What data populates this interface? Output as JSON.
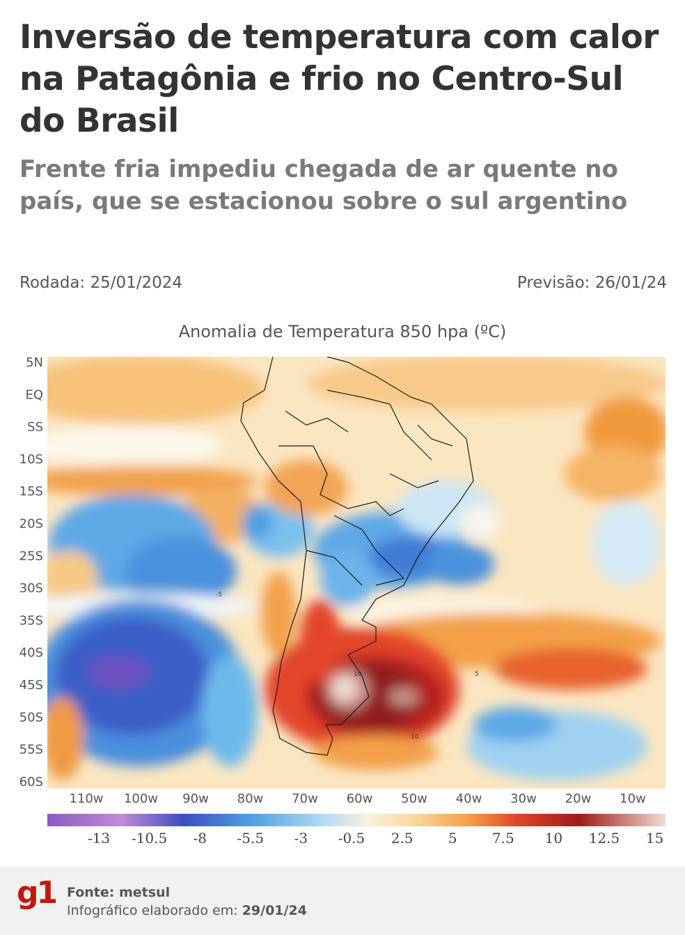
{
  "header": {
    "title": "Inversão de temperatura com calor na Patagônia e frio no Centro-Sul do Brasil",
    "subtitle": "Frente fria impediu chegada de ar quente no país, que se estacionou sobre o sul argentino"
  },
  "run": {
    "label": "Rodada: 25/01/2024"
  },
  "forecast": {
    "label": "Previsão: 26/01/24"
  },
  "map": {
    "title": "Anomalia de Temperatura 850 hpa (ºC)",
    "lat_labels": [
      "5N",
      "EQ",
      "SS",
      "10S",
      "15S",
      "20S",
      "25S",
      "30S",
      "35S",
      "40S",
      "45S",
      "50S",
      "55S",
      "60S"
    ],
    "lon_labels": [
      "110w",
      "100w",
      "90w",
      "80w",
      "70w",
      "60w",
      "50w",
      "40w",
      "30w",
      "20w",
      "10w"
    ],
    "contour_labels": [
      "5",
      "-5",
      "10"
    ],
    "colors": {
      "cold_extreme": "#8a5cc0",
      "cold_deep": "#3b4fbf",
      "cold": "#4f9fe3",
      "cool": "#b9dcf2",
      "neutral": "#fbf1dc",
      "warm": "#fad59a",
      "warmer": "#f3a04a",
      "hot": "#e2452a",
      "very_hot": "#9e1b1b",
      "extreme": "#f1dcd2"
    }
  },
  "scale": {
    "labels": [
      "-13",
      "-10.5",
      "-8",
      "-5.5",
      "-3",
      "-0.5",
      "2.5",
      "5",
      "7.5",
      "10",
      "12.5",
      "15"
    ]
  },
  "footer": {
    "logo": "g1",
    "source": "Fonte: metsul",
    "made_label": "Infográfico elaborado em:",
    "made_date": "29/01/24"
  }
}
